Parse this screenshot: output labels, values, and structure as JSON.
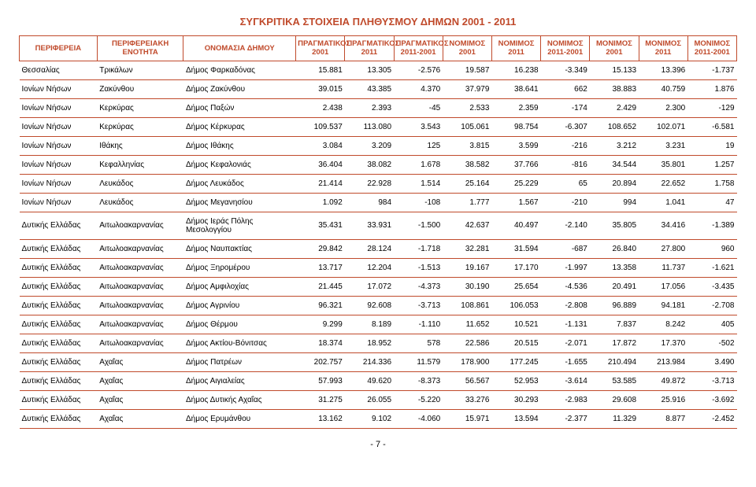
{
  "title": "ΣΥΓΚΡΙΤΙΚΑ ΣΤΟΙΧΕΙΑ ΠΛΗΘΥΣΜΟΥ ΔΗΜΩΝ 2001 - 2011",
  "page_number": "- 7 -",
  "colors": {
    "accent": "#c04a2b",
    "text": "#000000",
    "background": "#ffffff"
  },
  "headers": [
    "ΠΕΡΙΦΕΡΕΙΑ",
    "ΠΕΡΙΦΕΡΕΙΑΚΗ ΕΝΟΤΗΤΑ",
    "ΟΝΟΜΑΣΙΑ ΔΗΜΟΥ",
    "ΠΡΑΓΜΑΤΙΚΟΣ 2001",
    "ΠΡΑΓΜΑΤΙΚΟΣ 2011",
    "ΠΡΑΓΜΑΤΙΚΟΣ 2011-2001",
    "ΝΟΜΙΜΟΣ 2001",
    "ΝΟΜΙΜΟΣ 2011",
    "ΝΟΜΙΜΟΣ 2011-2001",
    "ΜΟΝΙΜΟΣ 2001",
    "ΜΟΝΙΜΟΣ 2011",
    "ΜΟΝΙΜΟΣ 2011-2001"
  ],
  "rows": [
    [
      "Θεσσαλίας",
      "Τρικάλων",
      "Δήμος Φαρκαδόνας",
      "15.881",
      "13.305",
      "-2.576",
      "19.587",
      "16.238",
      "-3.349",
      "15.133",
      "13.396",
      "-1.737"
    ],
    [
      "Ιονίων Νήσων",
      "Ζακύνθου",
      "Δήμος Ζακύνθου",
      "39.015",
      "43.385",
      "4.370",
      "37.979",
      "38.641",
      "662",
      "38.883",
      "40.759",
      "1.876"
    ],
    [
      "Ιονίων Νήσων",
      "Κερκύρας",
      "Δήμος Παξών",
      "2.438",
      "2.393",
      "-45",
      "2.533",
      "2.359",
      "-174",
      "2.429",
      "2.300",
      "-129"
    ],
    [
      "Ιονίων Νήσων",
      "Κερκύρας",
      "Δήμος Κέρκυρας",
      "109.537",
      "113.080",
      "3.543",
      "105.061",
      "98.754",
      "-6.307",
      "108.652",
      "102.071",
      "-6.581"
    ],
    [
      "Ιονίων Νήσων",
      "Ιθάκης",
      "Δήμος Ιθάκης",
      "3.084",
      "3.209",
      "125",
      "3.815",
      "3.599",
      "-216",
      "3.212",
      "3.231",
      "19"
    ],
    [
      "Ιονίων Νήσων",
      "Κεφαλληνίας",
      "Δήμος Κεφαλονιάς",
      "36.404",
      "38.082",
      "1.678",
      "38.582",
      "37.766",
      "-816",
      "34.544",
      "35.801",
      "1.257"
    ],
    [
      "Ιονίων Νήσων",
      "Λευκάδος",
      "Δήμος Λευκάδος",
      "21.414",
      "22.928",
      "1.514",
      "25.164",
      "25.229",
      "65",
      "20.894",
      "22.652",
      "1.758"
    ],
    [
      "Ιονίων Νήσων",
      "Λευκάδος",
      "Δήμος Μεγανησίου",
      "1.092",
      "984",
      "-108",
      "1.777",
      "1.567",
      "-210",
      "994",
      "1.041",
      "47"
    ],
    [
      "Δυτικής Ελλάδας",
      "Αιτωλοακαρνανίας",
      "Δήμος Ιεράς Πόλης Μεσολογγίου",
      "35.431",
      "33.931",
      "-1.500",
      "42.637",
      "40.497",
      "-2.140",
      "35.805",
      "34.416",
      "-1.389"
    ],
    [
      "Δυτικής Ελλάδας",
      "Αιτωλοακαρνανίας",
      "Δήμος Ναυπακτίας",
      "29.842",
      "28.124",
      "-1.718",
      "32.281",
      "31.594",
      "-687",
      "26.840",
      "27.800",
      "960"
    ],
    [
      "Δυτικής Ελλάδας",
      "Αιτωλοακαρνανίας",
      "Δήμος Ξηρομέρου",
      "13.717",
      "12.204",
      "-1.513",
      "19.167",
      "17.170",
      "-1.997",
      "13.358",
      "11.737",
      "-1.621"
    ],
    [
      "Δυτικής Ελλάδας",
      "Αιτωλοακαρνανίας",
      "Δήμος Αμφιλοχίας",
      "21.445",
      "17.072",
      "-4.373",
      "30.190",
      "25.654",
      "-4.536",
      "20.491",
      "17.056",
      "-3.435"
    ],
    [
      "Δυτικής Ελλάδας",
      "Αιτωλοακαρνανίας",
      "Δήμος Αγρινίου",
      "96.321",
      "92.608",
      "-3.713",
      "108.861",
      "106.053",
      "-2.808",
      "96.889",
      "94.181",
      "-2.708"
    ],
    [
      "Δυτικής Ελλάδας",
      "Αιτωλοακαρνανίας",
      "Δήμος Θέρμου",
      "9.299",
      "8.189",
      "-1.110",
      "11.652",
      "10.521",
      "-1.131",
      "7.837",
      "8.242",
      "405"
    ],
    [
      "Δυτικής Ελλάδας",
      "Αιτωλοακαρνανίας",
      "Δήμος Ακτίου-Βόνιτσας",
      "18.374",
      "18.952",
      "578",
      "22.586",
      "20.515",
      "-2.071",
      "17.872",
      "17.370",
      "-502"
    ],
    [
      "Δυτικής Ελλάδας",
      "Αχαΐας",
      "Δήμος Πατρέων",
      "202.757",
      "214.336",
      "11.579",
      "178.900",
      "177.245",
      "-1.655",
      "210.494",
      "213.984",
      "3.490"
    ],
    [
      "Δυτικής Ελλάδας",
      "Αχαΐας",
      "Δήμος Αιγιαλείας",
      "57.993",
      "49.620",
      "-8.373",
      "56.567",
      "52.953",
      "-3.614",
      "53.585",
      "49.872",
      "-3.713"
    ],
    [
      "Δυτικής Ελλάδας",
      "Αχαΐας",
      "Δήμος Δυτικής Αχαΐας",
      "31.275",
      "26.055",
      "-5.220",
      "33.276",
      "30.293",
      "-2.983",
      "29.608",
      "25.916",
      "-3.692"
    ],
    [
      "Δυτικής Ελλάδας",
      "Αχαΐας",
      "Δήμος Ερυμάνθου",
      "13.162",
      "9.102",
      "-4.060",
      "15.971",
      "13.594",
      "-2.377",
      "11.329",
      "8.877",
      "-2.452"
    ]
  ]
}
